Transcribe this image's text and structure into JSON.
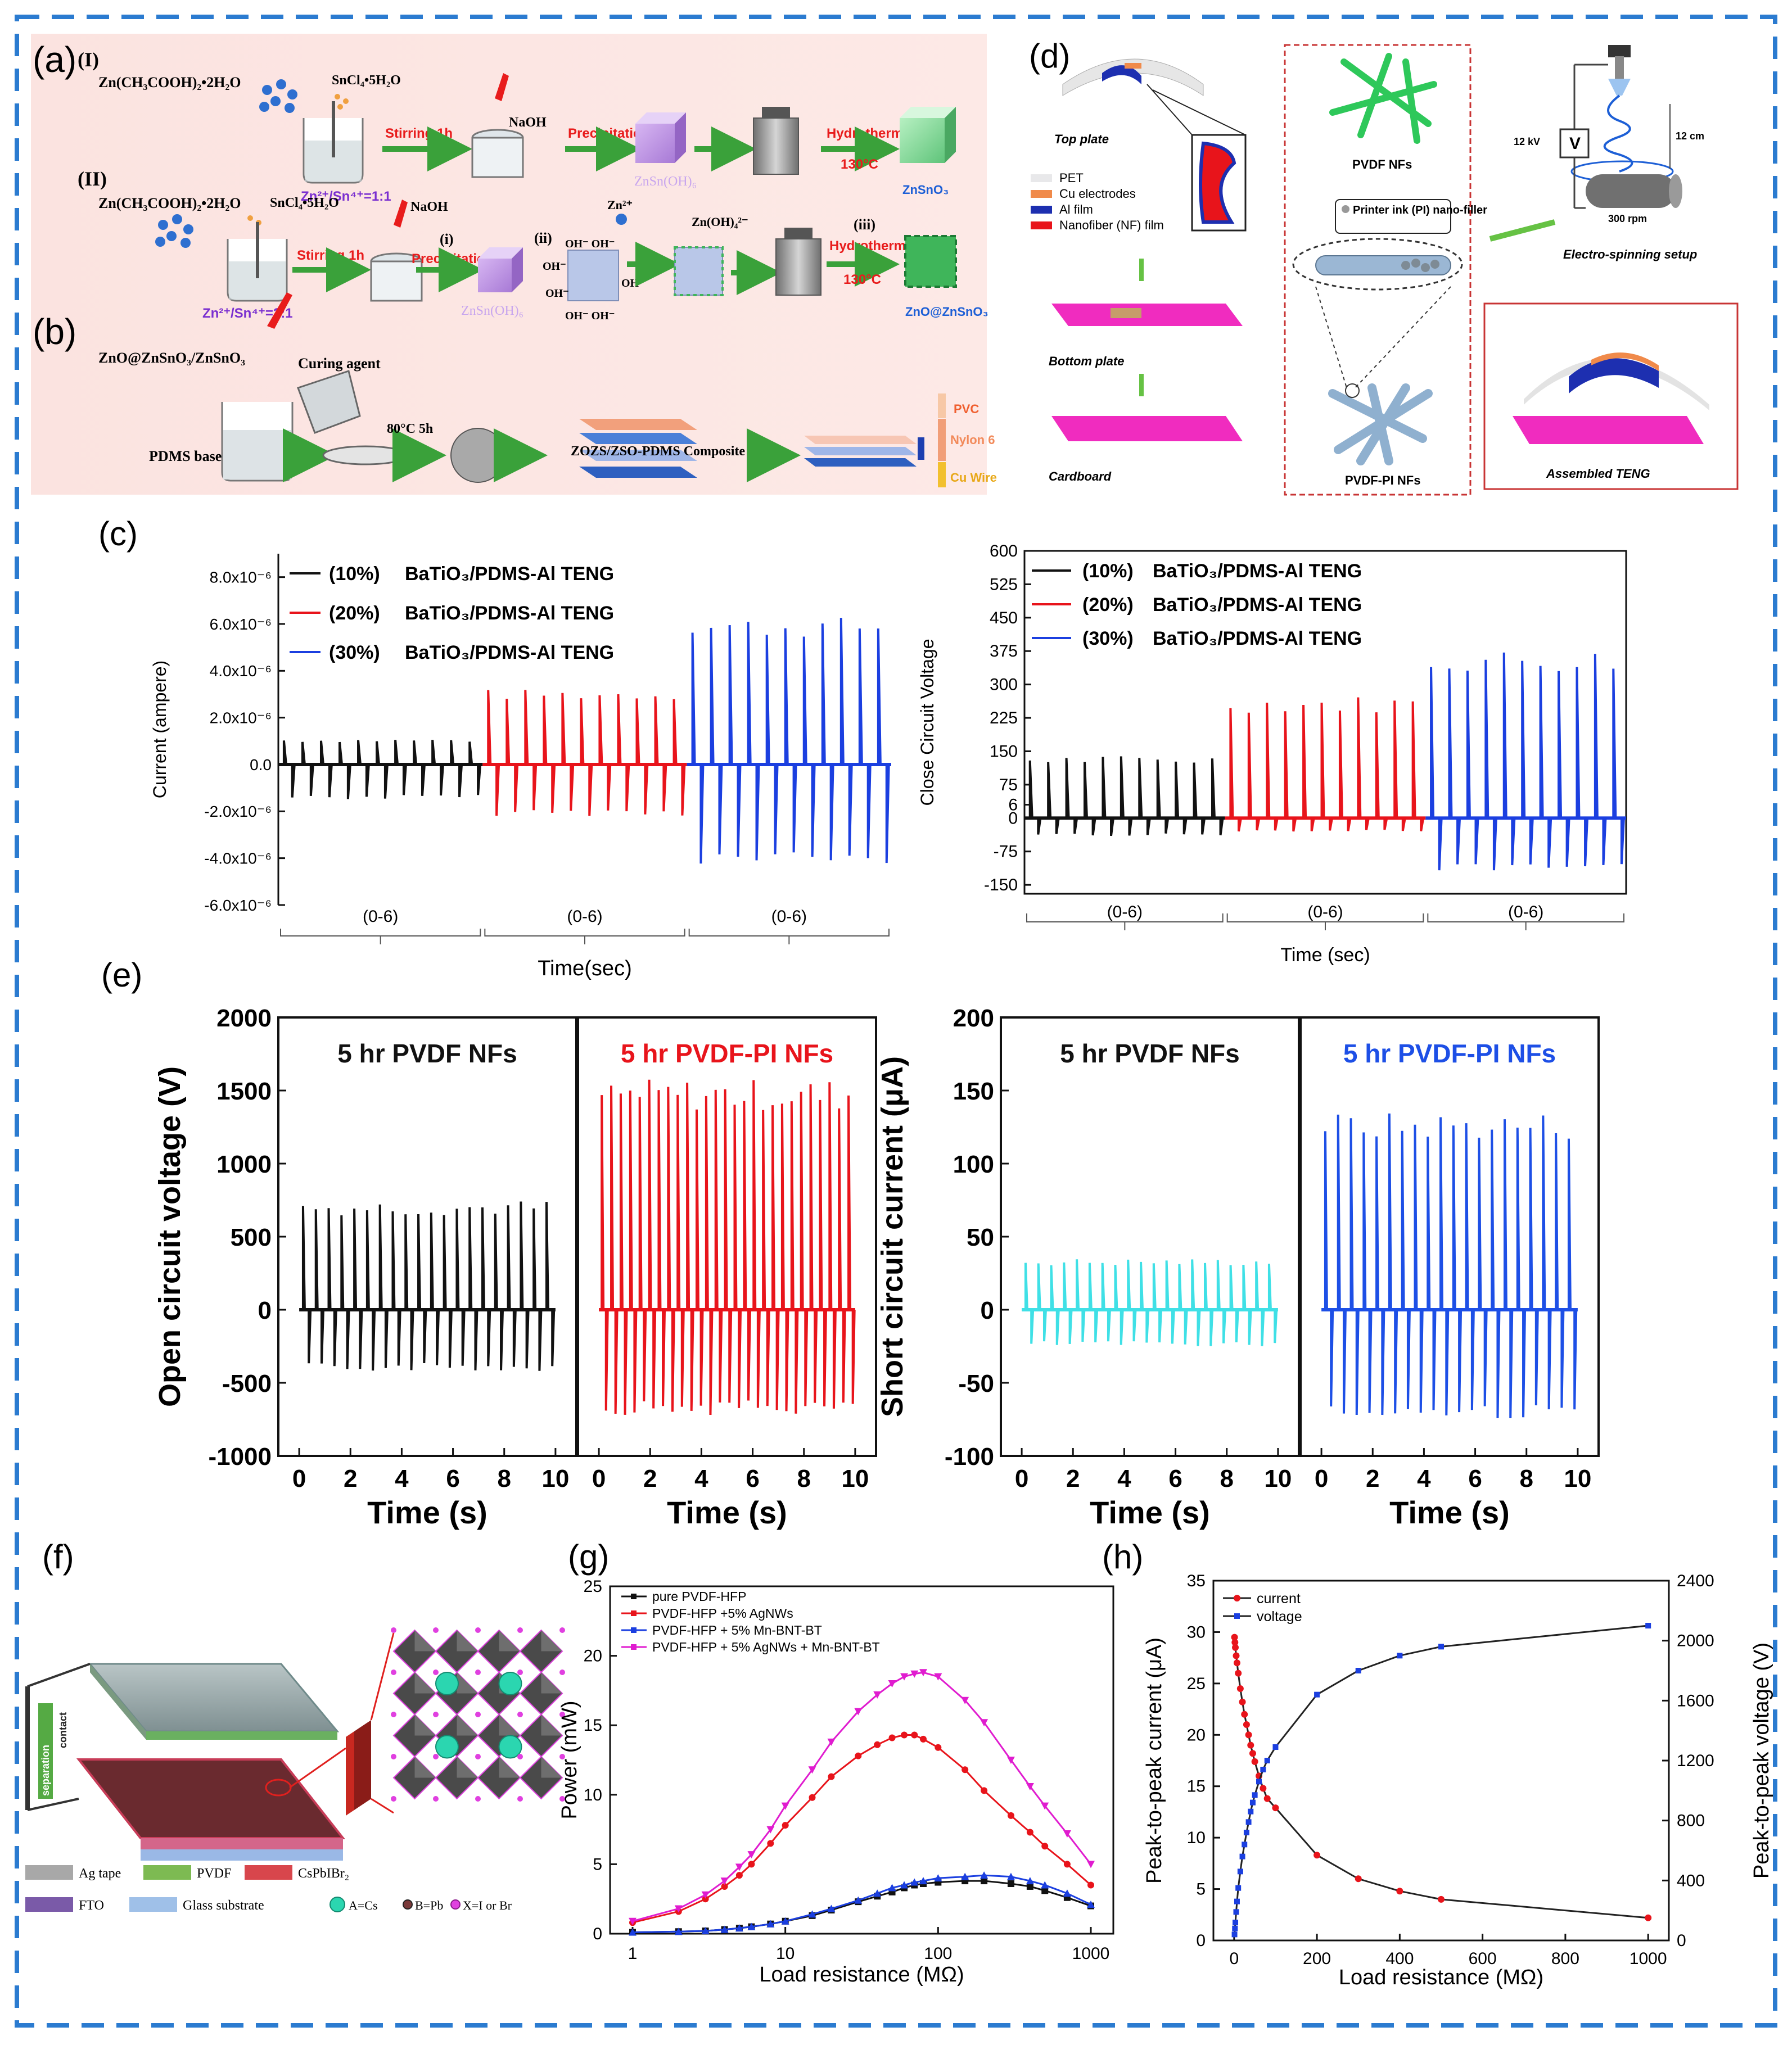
{
  "panel_labels": {
    "a": "(a)",
    "b": "(b)",
    "c": "(c)",
    "d": "(d)",
    "e": "(e)",
    "f": "(f)",
    "g": "(g)",
    "h": "(h)"
  },
  "colors": {
    "border": "#2b7bd0",
    "black": "#111111",
    "red": "#e8141b",
    "blue": "#1b3fe0",
    "cyan": "#3fe0e6",
    "ebBlue": "#1d4fe6",
    "magenta": "#e01ccf",
    "pink": "#e83aa8",
    "green": "#2a9a3a"
  },
  "panel_a": {
    "row1_roman": "(I)",
    "row2_roman": "(II)",
    "zinc_acetate": "Zn(CH₃COOH)₂•2H₂O",
    "tin_chloride": "SnCl₄•5H₂O",
    "naoh": "NaOH",
    "stirring": "Stirring 1h",
    "precipitation": "Precipitation",
    "hydrothermal": "Hydrothermally",
    "temp": "130°C",
    "ratio1": "Zn²⁺/Sn⁴⁺=1:1",
    "ratio2": "Zn²⁺/Sn⁴⁺=2:1",
    "znsnoh": "ZnSn(OH)₆",
    "znsno3": "ZnSnO₃",
    "zno_znsno3": "ZnO@ZnSnO₃",
    "step_i": "(i)",
    "step_ii": "(ii)",
    "step_iii": "(iii)",
    "zn2": "Zn²⁺",
    "znoh4": "Zn(OH)₄²⁻",
    "oh": "OH⁻",
    "oh_row": "OH⁻  OH⁻"
  },
  "panel_b": {
    "zno_composite": "ZnO@ZnSnO₃/ZnSnO₃",
    "curing_agent": "Curing agent",
    "pdms_base": "PDMS base",
    "cure": "80°C 5h",
    "composite": "ZOZS/ZSO-PDMS Composite",
    "pvc": "PVC",
    "nylon": "Nylon 6",
    "cu_wire": "Cu Wire"
  },
  "panel_d": {
    "top_plate": "Top plate",
    "bottom_plate": "Bottom plate",
    "cardboard": "Cardboard",
    "legend": [
      "PET",
      "Cu electrodes",
      "Al film",
      "Nanofiber (NF) film"
    ],
    "pvdf_nfs": "PVDF NFs",
    "printer_ink": "Printer ink (PI) nano-filler",
    "pvdf_pi_nfs": "PVDF-PI NFs",
    "kv": "12 kV",
    "v": "V",
    "cm": "12 cm",
    "rpm": "300 rpm",
    "setup": "Electro-spinning setup",
    "assembled": "Assembled TENG"
  },
  "panel_f": {
    "legend": [
      "Ag tape",
      "PVDF",
      "CsPbIBr₂",
      "FTO",
      "Glass substrate"
    ],
    "atoms": [
      "A=Cs",
      "B=Pb",
      "X=I or Br"
    ],
    "separation": "separation",
    "contact": "contact"
  },
  "chart_data": [
    {
      "id": "c-left",
      "type": "line",
      "ylabel": "Current (ampere)",
      "xlabel": "Time(sec)",
      "yticks": [
        "-6.0x10⁻⁶",
        "-4.0x10⁻⁶",
        "-2.0x10⁻⁶",
        "0.0",
        "2.0x10⁻⁶",
        "4.0x10⁻⁶",
        "6.0x10⁻⁶",
        "8.0x10⁻⁶"
      ],
      "ylim": [
        -6e-06,
        9e-06
      ],
      "segment_labels": [
        "(0-6)",
        "(0-6)",
        "(0-6)"
      ],
      "series": [
        {
          "prefix": "(10%)",
          "name": "BaTiO₃/PDMS-Al TENG",
          "color": "#111111",
          "peaks": 11,
          "pos": 1.1e-06,
          "neg": -1.5e-06
        },
        {
          "prefix": "(20%)",
          "name": "BaTiO₃/PDMS-Al TENG",
          "color": "#e8141b",
          "peaks": 11,
          "pos": 3.2e-06,
          "neg": -2.2e-06
        },
        {
          "prefix": "(30%)",
          "name": "BaTiO₃/PDMS-Al TENG",
          "color": "#1b3fe0",
          "peaks": 11,
          "pos": 6.3e-06,
          "neg": -4.3e-06
        }
      ]
    },
    {
      "id": "c-right",
      "type": "line",
      "ylabel": "Close Circuit Voltage",
      "xlabel": "Time (sec)",
      "yticks": [
        "-150",
        "-75",
        "0",
        "6",
        "75",
        "150",
        "225",
        "300",
        "375",
        "450",
        "525",
        "600"
      ],
      "ylim": [
        -170,
        600
      ],
      "segment_labels": [
        "(0-6)",
        "(0-6)",
        "(0-6)"
      ],
      "series": [
        {
          "prefix": "(10%)",
          "name": "BaTiO₃/PDMS-Al TENG",
          "color": "#111111",
          "peaks": 11,
          "pos": 140,
          "neg": -40
        },
        {
          "prefix": "(20%)",
          "name": "BaTiO₃/PDMS-Al TENG",
          "color": "#e8141b",
          "peaks": 11,
          "pos": 275,
          "neg": -30
        },
        {
          "prefix": "(30%)",
          "name": "BaTiO₃/PDMS-Al TENG",
          "color": "#1b3fe0",
          "peaks": 11,
          "pos": 380,
          "neg": -120
        }
      ]
    },
    {
      "id": "e-left",
      "type": "line",
      "ylabel": "Open circuit voltage (V)",
      "xlabel": "Time (s)",
      "yticks": [
        "-1000",
        "-500",
        "0",
        "500",
        "1000",
        "1500",
        "2000"
      ],
      "ylim": [
        -1000,
        2000
      ],
      "xticks": [
        "0",
        "2",
        "4",
        "6",
        "8",
        "10"
      ],
      "xlim": [
        0,
        10
      ],
      "series": [
        {
          "name": "5 hr PVDF NFs",
          "color": "#111111",
          "peaks": 20,
          "pos": 750,
          "neg": -420
        },
        {
          "name": "5 hr PVDF-PI NFs",
          "color": "#e8141b",
          "peaks": 27,
          "pos": 1580,
          "neg": -720
        }
      ]
    },
    {
      "id": "e-right",
      "type": "line",
      "ylabel": "Short circuit current (μA)",
      "xlabel": "Time (s)",
      "yticks": [
        "-100",
        "-50",
        "0",
        "50",
        "100",
        "150",
        "200"
      ],
      "ylim": [
        -100,
        200
      ],
      "xticks": [
        "0",
        "2",
        "4",
        "6",
        "8",
        "10"
      ],
      "xlim": [
        0,
        10
      ],
      "series": [
        {
          "name": "5 hr PVDF NFs",
          "color": "#3fe0e6",
          "peaks": 20,
          "pos": 35,
          "neg": -25
        },
        {
          "name": "5 hr PVDF-PI NFs",
          "color": "#1d4fe6",
          "peaks": 20,
          "pos": 135,
          "neg": -75
        }
      ]
    },
    {
      "id": "g",
      "type": "line",
      "xlabel": "Load resistance (MΩ)",
      "ylabel": "Power (mW)",
      "xscale": "log",
      "xlim": [
        1,
        1000
      ],
      "ylim": [
        0,
        25
      ],
      "xticks": [
        "1",
        "10",
        "100",
        "1000"
      ],
      "yticks": [
        "0",
        "5",
        "10",
        "15",
        "20",
        "25"
      ],
      "series": [
        {
          "name": "pure PVDF-HFP",
          "color": "#111111",
          "x": [
            1,
            2,
            3,
            4,
            5,
            6,
            8,
            10,
            15,
            20,
            30,
            40,
            50,
            60,
            70,
            80,
            100,
            150,
            200,
            300,
            400,
            500,
            700,
            1000
          ],
          "y": [
            0.1,
            0.15,
            0.2,
            0.3,
            0.4,
            0.5,
            0.7,
            0.9,
            1.3,
            1.7,
            2.3,
            2.7,
            3.0,
            3.3,
            3.5,
            3.6,
            3.7,
            3.8,
            3.8,
            3.6,
            3.4,
            3.1,
            2.6,
            2.0
          ]
        },
        {
          "name": "PVDF-HFP +5% AgNWs",
          "color": "#e8141b",
          "x": [
            1,
            2,
            3,
            4,
            5,
            6,
            8,
            10,
            15,
            20,
            30,
            40,
            50,
            60,
            70,
            80,
            100,
            150,
            200,
            300,
            400,
            500,
            700,
            1000
          ],
          "y": [
            0.8,
            1.6,
            2.5,
            3.4,
            4.2,
            5.0,
            6.5,
            7.8,
            9.8,
            11.3,
            12.8,
            13.6,
            14.1,
            14.3,
            14.3,
            14.0,
            13.4,
            11.8,
            10.3,
            8.5,
            7.3,
            6.3,
            5.0,
            3.5
          ]
        },
        {
          "name": "PVDF-HFP + 5% Mn-BNT-BT",
          "color": "#1b3fe0",
          "x": [
            1,
            2,
            3,
            4,
            5,
            6,
            8,
            10,
            15,
            20,
            30,
            40,
            50,
            60,
            70,
            80,
            100,
            150,
            200,
            300,
            400,
            500,
            700,
            1000
          ],
          "y": [
            0.1,
            0.15,
            0.2,
            0.3,
            0.4,
            0.5,
            0.7,
            0.9,
            1.4,
            1.8,
            2.4,
            2.9,
            3.3,
            3.5,
            3.7,
            3.8,
            4.0,
            4.1,
            4.2,
            4.1,
            3.8,
            3.5,
            2.9,
            2.1
          ]
        },
        {
          "name": "PVDF-HFP + 5% AgNWs + Mn-BNT-BT",
          "color": "#e01ccf",
          "x": [
            1,
            2,
            3,
            4,
            5,
            6,
            8,
            10,
            15,
            20,
            30,
            40,
            50,
            60,
            70,
            80,
            100,
            150,
            200,
            300,
            400,
            500,
            700,
            1000
          ],
          "y": [
            0.9,
            1.8,
            2.8,
            3.8,
            4.8,
            5.7,
            7.5,
            9.2,
            11.8,
            13.8,
            16.0,
            17.2,
            18.0,
            18.5,
            18.7,
            18.8,
            18.5,
            16.8,
            15.2,
            12.5,
            10.6,
            9.2,
            7.2,
            5.0
          ]
        }
      ]
    },
    {
      "id": "h",
      "type": "line",
      "xlabel": "Load resistance (MΩ)",
      "ylabel": "Peak-to-peak current (μA)",
      "y2label": "Peak-to-peak voltage (V)",
      "xlim": [
        -50,
        1050
      ],
      "ylim": [
        0,
        35
      ],
      "y2lim": [
        0,
        2400
      ],
      "xticks": [
        "0",
        "200",
        "400",
        "600",
        "800",
        "1000"
      ],
      "yticks": [
        "0",
        "5",
        "10",
        "15",
        "20",
        "25",
        "30",
        "35"
      ],
      "y2ticks": [
        "0",
        "400",
        "800",
        "1200",
        "1600",
        "2000",
        "2400"
      ],
      "series": [
        {
          "name": "current",
          "axis": "left",
          "color": "#e8141b",
          "x": [
            1,
            2,
            3,
            5,
            7,
            10,
            15,
            20,
            25,
            30,
            35,
            40,
            45,
            50,
            60,
            70,
            80,
            100,
            200,
            300,
            400,
            500,
            1000
          ],
          "y": [
            29.5,
            29.0,
            28.5,
            27.7,
            27.0,
            26.0,
            24.5,
            23.2,
            22.0,
            21.0,
            20.0,
            19.0,
            18.2,
            17.4,
            16.0,
            14.8,
            13.8,
            12.9,
            8.3,
            6.0,
            4.8,
            4.0,
            2.2
          ]
        },
        {
          "name": "voltage",
          "axis": "right",
          "color": "#1b3fe0",
          "x": [
            1,
            2,
            3,
            5,
            7,
            10,
            15,
            20,
            25,
            30,
            35,
            40,
            45,
            50,
            60,
            70,
            80,
            100,
            200,
            300,
            400,
            500,
            1000
          ],
          "y": [
            40,
            80,
            120,
            190,
            260,
            350,
            460,
            560,
            640,
            720,
            790,
            860,
            920,
            970,
            1060,
            1140,
            1200,
            1290,
            1640,
            1800,
            1900,
            1960,
            2100
          ]
        }
      ]
    }
  ]
}
